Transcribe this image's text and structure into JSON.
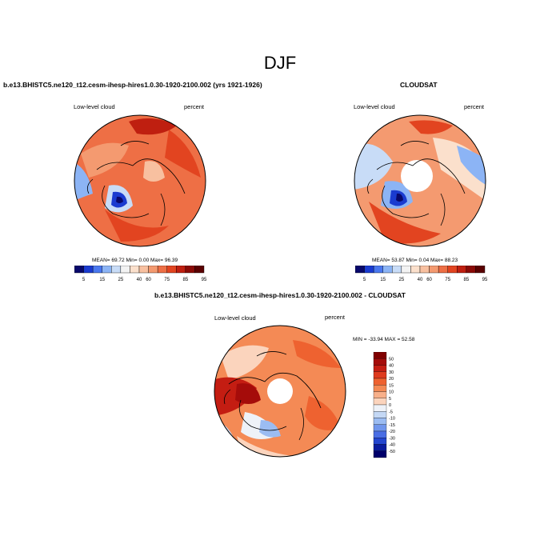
{
  "season": "DJF",
  "case_title": "b.e13.BHISTC5.ne120_t12.cesm-ihesp-hires1.0.30-1920-2100.002 (yrs 1921-1926)",
  "obs_title": "CLOUDSAT",
  "diff_title": "b.e13.BHISTC5.ne120_t12.cesm-ihesp-hires1.0.30-1920-2100.002 - CLOUDSAT",
  "panels": {
    "model": {
      "variable_label": "Low-level cloud",
      "units_label": "percent",
      "stats_text": "MEAN=  69.72  Min=   0.00  Max=  96.39"
    },
    "obs": {
      "variable_label": "Low-level cloud",
      "units_label": "percent",
      "stats_text": "MEAN=  53.87  Min=   0.04  Max=  88.23"
    },
    "diff": {
      "variable_label": "Low-level cloud",
      "units_label": "percent",
      "minmax_text": "MIN = -33.94 MAX =  52.58"
    }
  },
  "colorbar_abs": {
    "labels": [
      "5",
      "15",
      "25",
      "40",
      "60",
      "75",
      "85",
      "95"
    ],
    "colors": [
      "#08086b",
      "#1a3bd0",
      "#4a78ef",
      "#8cb4f5",
      "#c8dcf7",
      "#f3f3f3",
      "#fbe0cc",
      "#f8c0a0",
      "#f49a70",
      "#ee6f45",
      "#e24420",
      "#bf1f10",
      "#8a0a06",
      "#5a0000"
    ]
  },
  "colorbar_diff": {
    "labels": [
      "50",
      "40",
      "30",
      "20",
      "15",
      "10",
      "5",
      "0",
      "-5",
      "-10",
      "-15",
      "-20",
      "-30",
      "-40",
      "-50"
    ],
    "colors": [
      "#800000",
      "#a50c0a",
      "#c41d12",
      "#de3a1d",
      "#ee6230",
      "#f48a55",
      "#f8b08a",
      "#fbd4bd",
      "#eef2f8",
      "#c4d8f5",
      "#9bbcf2",
      "#7096ec",
      "#4a6ee4",
      "#2446cf",
      "#0a1c9e",
      "#00006b"
    ]
  }
}
